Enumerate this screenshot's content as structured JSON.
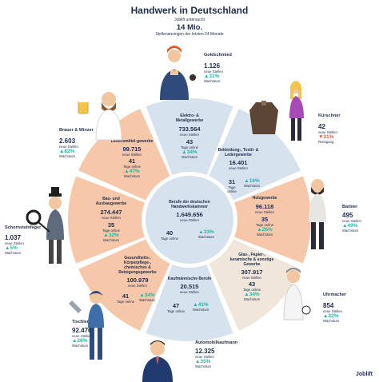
{
  "header": {
    "title": "Handwerk in Deutschland",
    "line1": "Joblift untersucht",
    "line2": "14 Mio.",
    "line3": "Stellenanzeigen der letzten 24 Monate"
  },
  "colors": {
    "navy": "#1f2d4a",
    "peach": "#f6c7a9",
    "lightblue": "#d6e2ee",
    "sand": "#f0e6da",
    "teal": "#1fb7a7",
    "red": "#e2564b"
  },
  "center": {
    "name": "Berufe der deutschen Handwerkskammer",
    "jobs": "1.649.656",
    "jobs_label": "neue Stellen",
    "days": "40",
    "days_label": "Tage online",
    "growth": "▲33%",
    "growth_label": "Wachstum"
  },
  "segments": [
    {
      "name": "Elektro- & Metallgewerbe",
      "jobs": "733.564",
      "jobs_label": "neue Stellen",
      "days": "43",
      "days_label": "Tage online",
      "growth": "▲34%",
      "growth_label": "Wachstum"
    },
    {
      "name": "Bekleidung-, Textil- & Ledergewerbe",
      "jobs": "16.401",
      "jobs_label": "neue Stellen",
      "days": "31",
      "days_label": "Tage online",
      "growth": "▲16%",
      "growth_label": "Wachstum"
    },
    {
      "name": "Holzgewerbe",
      "jobs": "96.118",
      "jobs_label": "neue Stellen",
      "days": "35",
      "days_label": "Tage online",
      "growth": "▲26%",
      "growth_label": "Wachstum"
    },
    {
      "name": "Glas-, Papier-, keramische & sonstige Gewerbe",
      "jobs": "307.917",
      "jobs_label": "neue Stellen",
      "days": "43",
      "days_label": "Tage online",
      "growth": "▲34%",
      "growth_label": "Wachstum"
    },
    {
      "name": "Kaufmännische Berufe",
      "jobs": "20.515",
      "jobs_label": "neue Stellen",
      "days": "47",
      "days_label": "Tage online",
      "growth": "▲41%",
      "growth_label": "Wachstum"
    },
    {
      "name": "Gesundheits-, Körperpflege-, chemisches & Reinigungsgewerbe",
      "jobs": "100.979",
      "jobs_label": "neue Stellen",
      "days": "41",
      "days_label": "Tage online",
      "growth": "▲34%",
      "growth_label": "Wachstum"
    },
    {
      "name": "Bau- und Ausbaugewerbe",
      "jobs": "274.447",
      "jobs_label": "neue Stellen",
      "days": "35",
      "days_label": "Tage online",
      "growth": "▲32%",
      "growth_label": "Wachstum"
    },
    {
      "name": "Lebensmittel-gewerbe",
      "jobs": "99.715",
      "jobs_label": "neue Stellen",
      "days": "41",
      "days_label": "Tage online",
      "growth": "▲47%",
      "growth_label": "Wachstum"
    }
  ],
  "jobs": [
    {
      "name": "Goldschmied",
      "jobs": "1.126",
      "jobs_label": "neue Stellen",
      "growth": "▲31%",
      "growth_label": "Wachstum"
    },
    {
      "name": "Kürschner",
      "jobs": "42",
      "jobs_label": "neue Stellen",
      "growth": "▼31%",
      "growth_label": "Rückgang"
    },
    {
      "name": "Barbier",
      "jobs": "495",
      "jobs_label": "neue Stellen",
      "growth": "▲49%",
      "growth_label": "Wachstum"
    },
    {
      "name": "Uhrmacher",
      "jobs": "854",
      "jobs_label": "neue Stellen",
      "growth": "▲32%",
      "growth_label": "Wachstum"
    },
    {
      "name": "Automobilkaufmann",
      "jobs": "12.325",
      "jobs_label": "neue Stellen",
      "growth": "▲35%",
      "growth_label": "Wachstum"
    },
    {
      "name": "Tischler",
      "jobs": "92.476",
      "jobs_label": "neue Stellen",
      "growth": "▲28%",
      "growth_label": "Wachstum"
    },
    {
      "name": "Schornsteinfeger",
      "jobs": "1.037",
      "jobs_label": "neue Stellen",
      "growth": "▲5%",
      "growth_label": "Wachstum"
    },
    {
      "name": "Brauer & Winzer",
      "jobs": "2.603",
      "jobs_label": "neue Stellen",
      "growth": "▲82%",
      "growth_label": "Wachstum"
    }
  ],
  "footer": {
    "brand": "Joblift"
  }
}
